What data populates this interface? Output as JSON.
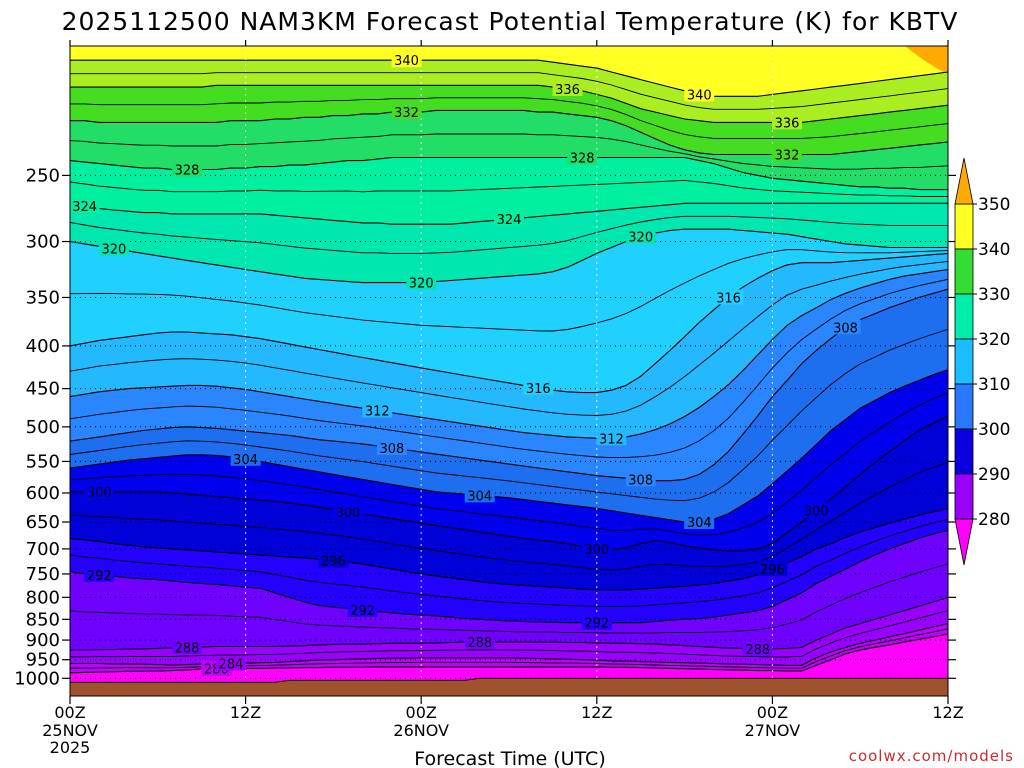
{
  "chart_data": {
    "type": "time-height contour",
    "title": "2025112500 NAM3KM Forecast Potential Temperature (K) for KBTV",
    "xlabel": "Forecast Time (UTC)",
    "ylabel": "",
    "credit": "coolwx.com/models",
    "x_range_hours": [
      0,
      60
    ],
    "y_range_hpa": [
      1050,
      175
    ],
    "y_ticks": [
      {
        "value": 250,
        "label": "250"
      },
      {
        "value": 300,
        "label": "300"
      },
      {
        "value": 350,
        "label": "350"
      },
      {
        "value": 400,
        "label": "400"
      },
      {
        "value": 450,
        "label": "450"
      },
      {
        "value": 500,
        "label": "500"
      },
      {
        "value": 550,
        "label": "550"
      },
      {
        "value": 600,
        "label": "600"
      },
      {
        "value": 650,
        "label": "650"
      },
      {
        "value": 700,
        "label": "700"
      },
      {
        "value": 750,
        "label": "750"
      },
      {
        "value": 800,
        "label": "800"
      },
      {
        "value": 850,
        "label": "850"
      },
      {
        "value": 900,
        "label": "900"
      },
      {
        "value": 950,
        "label": "950"
      },
      {
        "value": 1000,
        "label": "1000"
      }
    ],
    "x_ticks": [
      {
        "hour": 0,
        "label": "00Z",
        "date": "25NOV",
        "year": "2025"
      },
      {
        "hour": 12,
        "label": "12Z",
        "date": "",
        "year": ""
      },
      {
        "hour": 24,
        "label": "00Z",
        "date": "26NOV",
        "year": ""
      },
      {
        "hour": 36,
        "label": "12Z",
        "date": "",
        "year": ""
      },
      {
        "hour": 48,
        "label": "00Z",
        "date": "27NOV",
        "year": ""
      },
      {
        "hour": 60,
        "label": "12Z",
        "date": "",
        "year": ""
      }
    ],
    "colorbar": {
      "levels": [
        280,
        290,
        300,
        310,
        320,
        330,
        340,
        350
      ],
      "colors": [
        "#ff00ff",
        "#9a00ff",
        "#3200ff",
        "#0a00e0",
        "#2a78ff",
        "#1bbfff",
        "#00eeaa",
        "#33dd33",
        "#ffff22",
        "#ffaa00"
      ]
    },
    "contours": [
      {
        "level": 280,
        "label": "280",
        "p": [
          985,
          984,
          983,
          982,
          981,
          981,
          980,
          979,
          977,
          975,
          974,
          974,
          973,
          973,
          972,
          972,
          971,
          971,
          970,
          970,
          970,
          969,
          969,
          969,
          969,
          969,
          969,
          969,
          969,
          969,
          969,
          969,
          969,
          969,
          969,
          969,
          969,
          970,
          970,
          971,
          972,
          973,
          974,
          975,
          976,
          977,
          978,
          979,
          979,
          980,
          980,
          965,
          950,
          935,
          925,
          918,
          912,
          905,
          898,
          892,
          885
        ]
      },
      {
        "level": 284,
        "label": "284",
        "p": [
          960,
          960,
          960,
          961,
          961,
          962,
          963,
          964,
          963,
          962,
          961,
          960,
          959,
          958,
          957,
          955,
          953,
          951,
          950,
          949,
          948,
          947,
          946,
          946,
          945,
          945,
          945,
          945,
          945,
          945,
          945,
          946,
          947,
          948,
          949,
          950,
          951,
          953,
          954,
          955,
          956,
          957,
          958,
          959,
          960,
          961,
          962,
          963,
          964,
          965,
          965,
          945,
          930,
          918,
          908,
          900,
          892,
          884,
          876,
          868,
          860
        ]
      },
      {
        "level": 288,
        "label": "288",
        "p": [
          925,
          925,
          924,
          924,
          923,
          922,
          921,
          920,
          918,
          917,
          916,
          916,
          916,
          916,
          916,
          915,
          914,
          912,
          911,
          910,
          910,
          909,
          908,
          908,
          908,
          907,
          906,
          905,
          905,
          905,
          905,
          905,
          905,
          905,
          906,
          906,
          907,
          908,
          908,
          909,
          910,
          912,
          914,
          916,
          918,
          920,
          921,
          922,
          922,
          921,
          918,
          900,
          885,
          870,
          860,
          850,
          840,
          830,
          820,
          810,
          800
        ]
      },
      {
        "level": 292,
        "label": "292",
        "p": [
          745,
          750,
          752,
          755,
          758,
          760,
          762,
          765,
          768,
          770,
          772,
          775,
          778,
          780,
          790,
          800,
          810,
          818,
          822,
          825,
          828,
          832,
          835,
          838,
          840,
          842,
          845,
          848,
          850,
          852,
          854,
          855,
          856,
          857,
          858,
          858,
          858,
          858,
          858,
          858,
          855,
          852,
          850,
          848,
          845,
          840,
          835,
          830,
          820,
          805,
          790,
          770,
          755,
          740,
          725,
          712,
          700,
          690,
          680,
          672,
          665
        ]
      },
      {
        "level": 296,
        "label": "296",
        "p": [
          680,
          683,
          686,
          690,
          693,
          696,
          698,
          700,
          702,
          704,
          706,
          708,
          710,
          712,
          714,
          716,
          718,
          720,
          723,
          726,
          730,
          735,
          740,
          745,
          750,
          754,
          758,
          762,
          766,
          770,
          772,
          774,
          776,
          778,
          780,
          782,
          784,
          784,
          784,
          782,
          780,
          778,
          776,
          773,
          770,
          765,
          760,
          752,
          740,
          728,
          715,
          700,
          690,
          678,
          668,
          660,
          652,
          645,
          638,
          632,
          626
        ]
      },
      {
        "level": 300,
        "label": "300",
        "p": [
          598,
          598,
          598,
          598,
          598,
          598,
          598,
          600,
          602,
          604,
          606,
          608,
          610,
          612,
          614,
          617,
          620,
          624,
          628,
          632,
          636,
          640,
          644,
          648,
          652,
          656,
          660,
          664,
          668,
          672,
          676,
          680,
          683,
          686,
          690,
          695,
          700,
          702,
          698,
          690,
          684,
          688,
          694,
          698,
          702,
          704,
          703,
          700,
          690,
          670,
          650,
          630,
          610,
          590,
          570,
          552,
          535,
          520,
          505,
          495,
          485
        ]
      },
      {
        "level": 304,
        "label": "304",
        "p": [
          560,
          557,
          554,
          551,
          548,
          546,
          544,
          542,
          540,
          540,
          541,
          543,
          546,
          550,
          554,
          558,
          562,
          566,
          570,
          574,
          578,
          582,
          586,
          590,
          594,
          598,
          600,
          602,
          604,
          606,
          608,
          611,
          614,
          617,
          620,
          623,
          626,
          630,
          634,
          638,
          642,
          646,
          650,
          650,
          645,
          635,
          620,
          605,
          585,
          565,
          545,
          525,
          505,
          490,
          475,
          465,
          455,
          447,
          440,
          433,
          427
        ]
      },
      {
        "level": 308,
        "label": "308",
        "p": [
          520,
          517,
          514,
          511,
          508,
          505,
          503,
          501,
          500,
          501,
          502,
          504,
          506,
          508,
          510,
          512,
          515,
          518,
          520,
          522,
          524,
          527,
          530,
          533,
          536,
          539,
          542,
          545,
          548,
          551,
          554,
          557,
          560,
          563,
          566,
          569,
          572,
          574,
          576,
          578,
          580,
          580,
          578,
          570,
          555,
          535,
          510,
          485,
          460,
          440,
          420,
          405,
          392,
          380,
          372,
          366,
          360,
          355,
          350,
          346,
          342
        ]
      },
      {
        "level": 312,
        "label": "312",
        "p": [
          460,
          457,
          454,
          452,
          450,
          449,
          448,
          447,
          446,
          446,
          447,
          449,
          451,
          454,
          457,
          460,
          463,
          466,
          469,
          472,
          475,
          478,
          481,
          484,
          487,
          490,
          493,
          496,
          499,
          502,
          505,
          508,
          510,
          512,
          514,
          515,
          516,
          516,
          514,
          510,
          504,
          496,
          486,
          474,
          460,
          445,
          428,
          410,
          393,
          378,
          368,
          360,
          352,
          346,
          341,
          337,
          333,
          330,
          328,
          326,
          324
        ]
      },
      {
        "level": 316,
        "label": "316",
        "p": [
          400,
          397,
          394,
          392,
          390,
          388,
          386,
          385,
          385,
          386,
          387,
          388,
          390,
          392,
          395,
          398,
          401,
          404,
          407,
          410,
          413,
          416,
          419,
          422,
          425,
          428,
          431,
          434,
          437,
          440,
          443,
          446,
          449,
          452,
          454,
          455,
          455,
          452,
          446,
          435,
          420,
          405,
          390,
          375,
          362,
          350,
          340,
          332,
          325,
          320,
          318,
          318,
          318,
          317,
          316,
          315,
          314,
          313,
          312,
          311,
          310
        ]
      },
      {
        "level": 320,
        "label": "320",
        "p": [
          300,
          302,
          304,
          306,
          308,
          310,
          312,
          314,
          316,
          318,
          320,
          322,
          324,
          326,
          328,
          330,
          332,
          333,
          334,
          335,
          336,
          336,
          336,
          336,
          336,
          335,
          334,
          333,
          332,
          331,
          330,
          329,
          328,
          326,
          322,
          316,
          310,
          305,
          300,
          296,
          293,
          291,
          290,
          290,
          290,
          290,
          291,
          292,
          293,
          294,
          296,
          298,
          300,
          302,
          303,
          304,
          305,
          305,
          305,
          305,
          305
        ]
      },
      {
        "level": 324,
        "label": "324",
        "p": [
          270,
          272,
          274,
          275,
          276,
          277,
          277,
          278,
          278,
          278,
          278,
          278,
          278,
          278,
          279,
          280,
          281,
          282,
          283,
          284,
          285,
          285,
          286,
          286,
          286,
          286,
          286,
          285,
          284,
          283,
          282,
          281,
          280,
          279,
          278,
          277,
          276,
          275,
          274,
          273,
          272,
          271,
          270,
          270,
          270,
          270,
          270,
          270,
          270,
          270,
          270,
          270,
          270,
          270,
          270,
          270,
          270,
          270,
          270,
          270,
          270
        ]
      },
      {
        "level": 328,
        "label": "328",
        "p": [
          240,
          241,
          242,
          243,
          244,
          245,
          245,
          246,
          246,
          246,
          246,
          245,
          245,
          244,
          244,
          243,
          243,
          242,
          241,
          240,
          240,
          239,
          238,
          238,
          238,
          238,
          238,
          238,
          238,
          238,
          238,
          238,
          238,
          238,
          238,
          238,
          238,
          238,
          238,
          238,
          238,
          238,
          238,
          240,
          242,
          245,
          248,
          250,
          252,
          253,
          254,
          255,
          256,
          257,
          258,
          258,
          259,
          259,
          260,
          260,
          260
        ]
      },
      {
        "level": 332,
        "label": "332",
        "p": [
          215,
          215,
          216,
          216,
          216,
          216,
          216,
          216,
          216,
          216,
          216,
          215,
          215,
          215,
          214,
          214,
          213,
          213,
          212,
          212,
          211,
          211,
          210,
          210,
          210,
          209,
          209,
          209,
          209,
          209,
          209,
          209,
          210,
          210,
          211,
          212,
          213,
          215,
          218,
          222,
          226,
          230,
          233,
          235,
          236,
          236,
          236,
          236,
          236,
          236,
          236,
          236,
          236,
          235,
          234,
          233,
          232,
          231,
          230,
          229,
          228
        ]
      },
      {
        "level": 336,
        "label": "336",
        "p": [
          196,
          196,
          196,
          196,
          196,
          196,
          196,
          196,
          196,
          196,
          195,
          195,
          195,
          195,
          195,
          195,
          195,
          195,
          195,
          195,
          195,
          195,
          195,
          195,
          195,
          195,
          195,
          195,
          195,
          195,
          195,
          195,
          195,
          196,
          197,
          198,
          200,
          202,
          205,
          208,
          210,
          212,
          214,
          215,
          216,
          216,
          216,
          216,
          216,
          216,
          216,
          215,
          214,
          213,
          212,
          211,
          210,
          209,
          208,
          207,
          206
        ]
      },
      {
        "level": 340,
        "label": "340",
        "p": [
          182,
          182,
          182,
          182,
          182,
          182,
          182,
          182,
          182,
          182,
          182,
          182,
          182,
          182,
          182,
          182,
          182,
          182,
          182,
          182,
          182,
          182,
          182,
          182,
          182,
          182,
          182,
          182,
          182,
          182,
          182,
          182,
          182,
          183,
          184,
          185,
          186,
          188,
          190,
          192,
          194,
          196,
          198,
          200,
          201,
          201,
          201,
          201,
          200,
          199,
          198,
          197,
          196,
          195,
          194,
          193,
          192,
          191,
          190,
          189,
          188
        ]
      }
    ]
  }
}
